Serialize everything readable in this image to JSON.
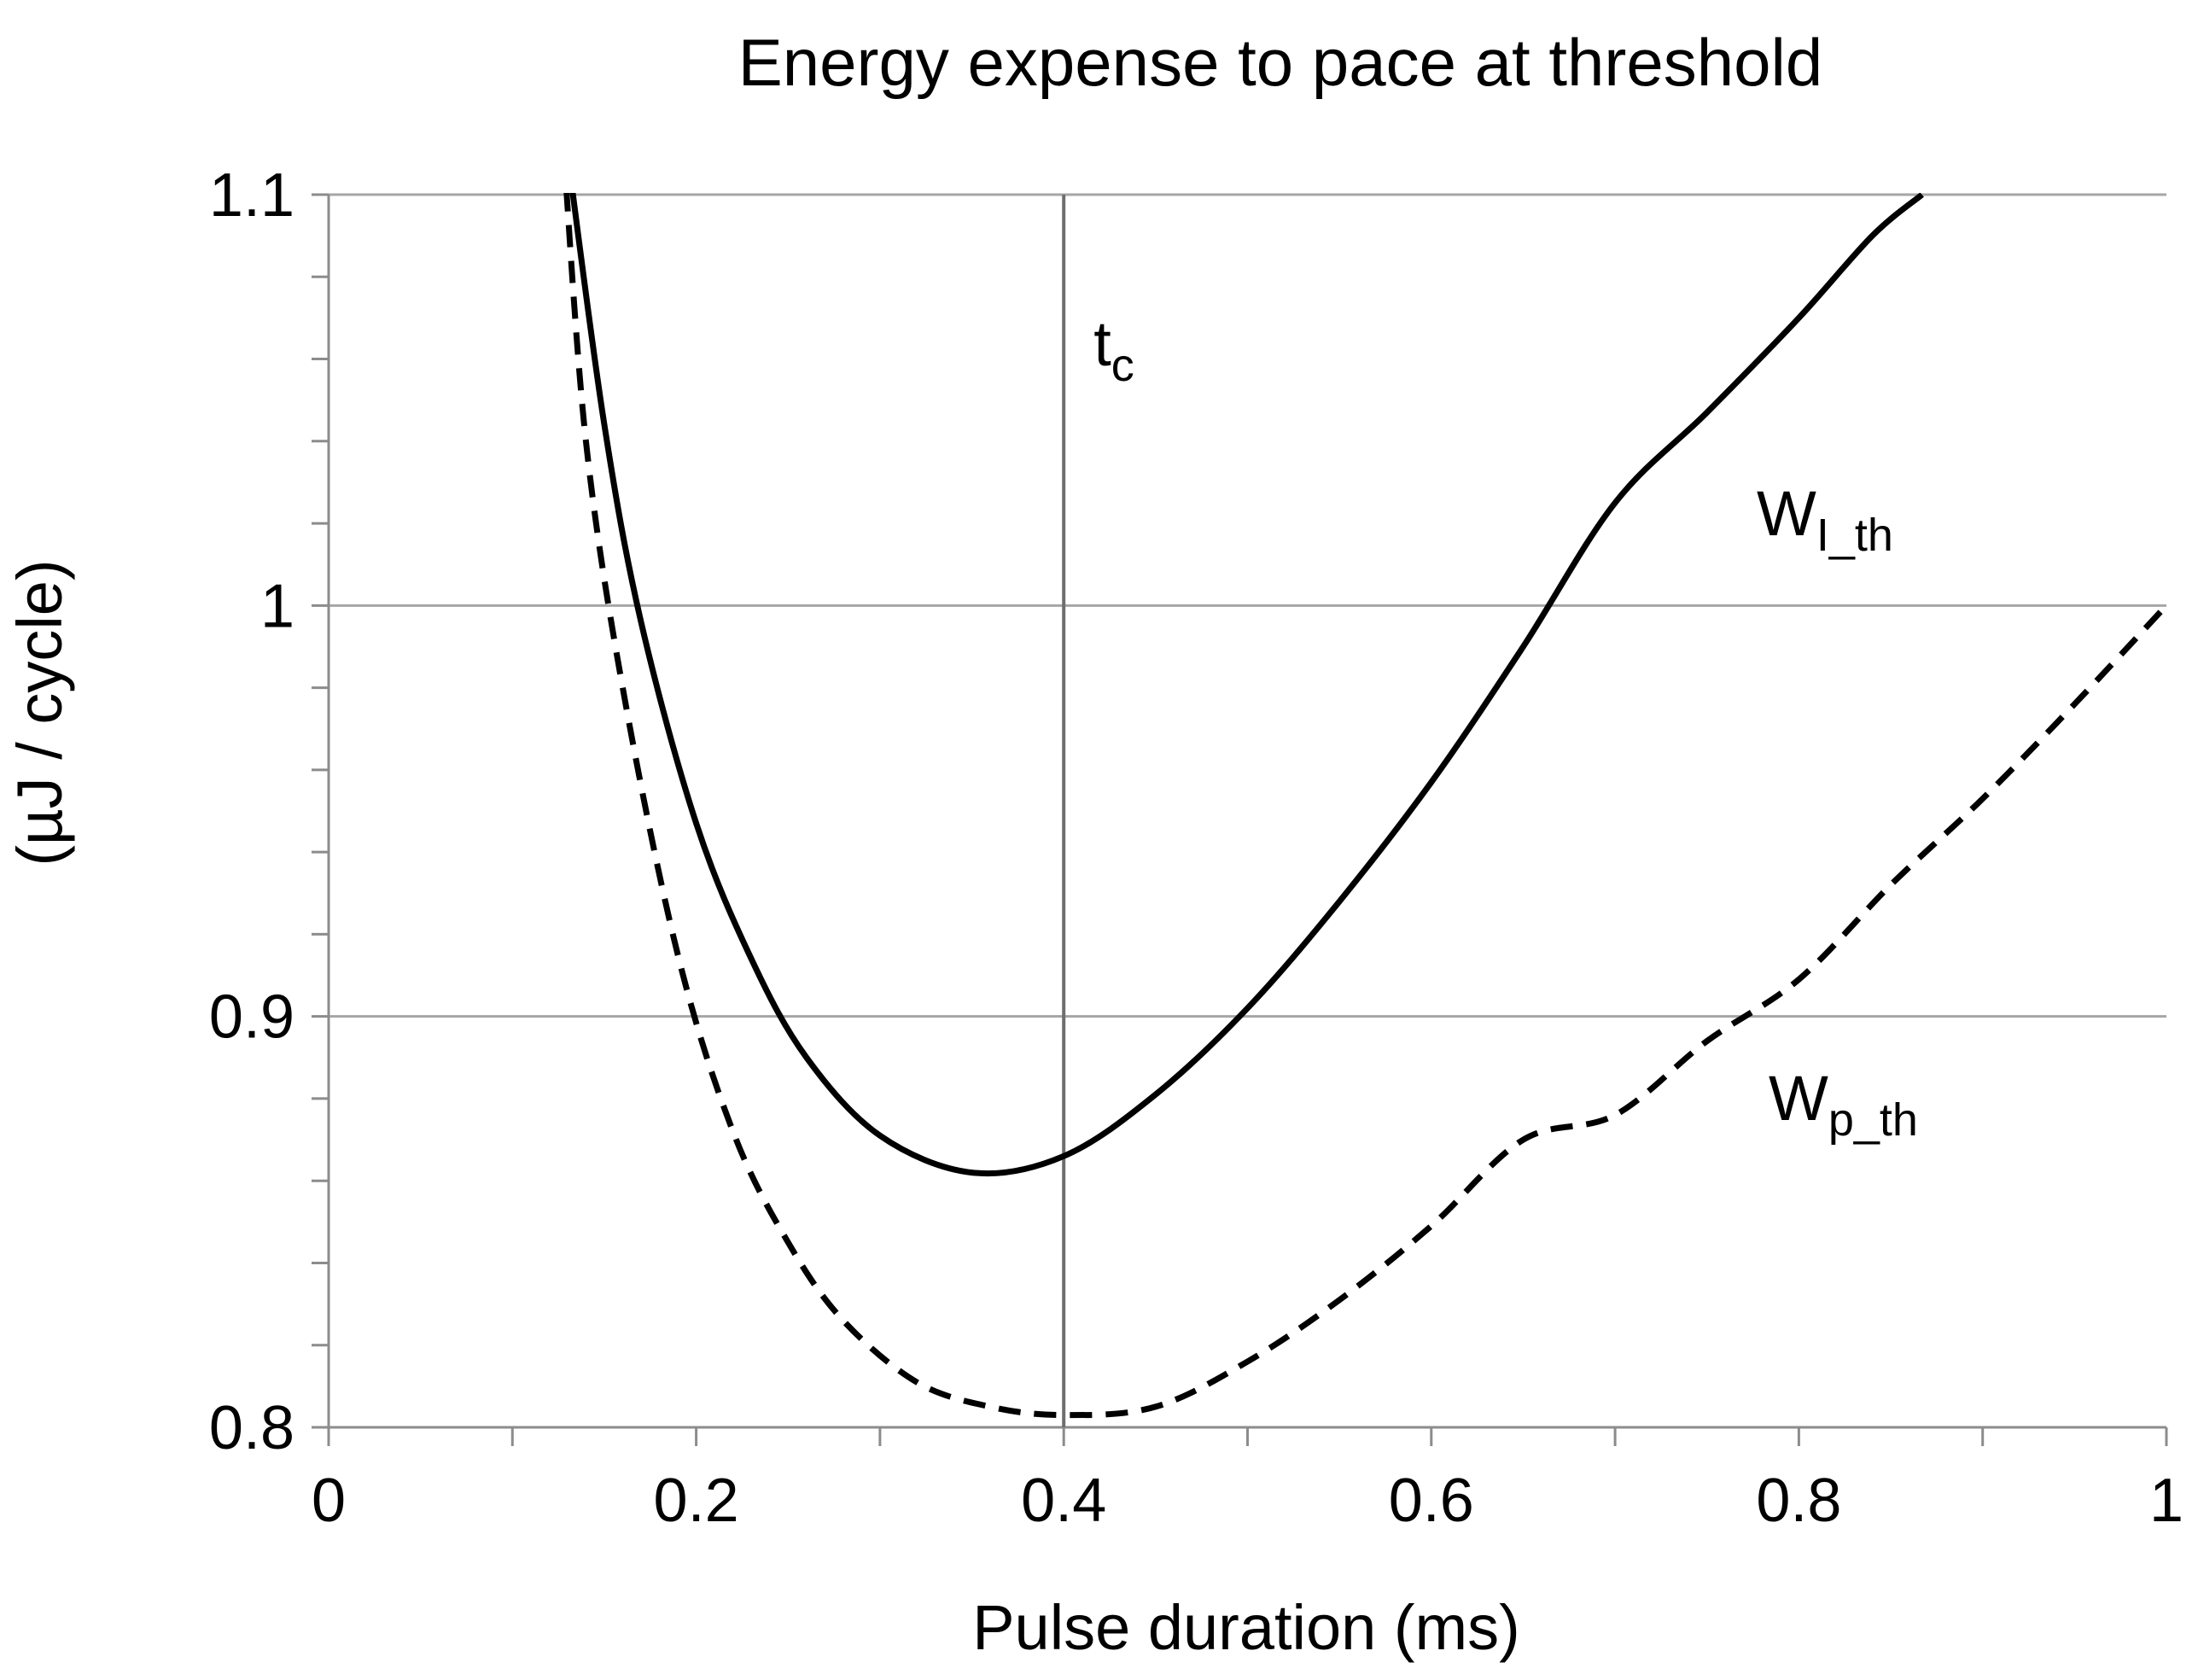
{
  "chart_data": {
    "type": "line",
    "title": "Energy expense to pace at threshold",
    "xlabel": "Pulse duration (ms)",
    "ylabel": "(µJ / cycle)",
    "xlim": [
      0,
      1
    ],
    "ylim": [
      0.8,
      1.1
    ],
    "x_ticks": [
      "0",
      "0.2",
      "0.4",
      "0.6",
      "0.8",
      "1"
    ],
    "y_ticks": [
      "0.8",
      "0.9",
      "1",
      "1.1"
    ],
    "grid": "horizontal",
    "vline": {
      "x": 0.4,
      "label_main": "t",
      "label_sub": "c"
    },
    "series": [
      {
        "name": "W_I_th",
        "label_main": "W",
        "label_sub": "I_th",
        "style": "solid",
        "x": [
          0.13,
          0.15,
          0.17,
          0.2,
          0.23,
          0.26,
          0.3,
          0.35,
          0.4,
          0.45,
          0.5,
          0.55,
          0.6,
          0.65,
          0.7,
          0.75,
          0.8,
          0.84,
          0.867
        ],
        "y": [
          1.11,
          1.044,
          0.996,
          0.947,
          0.914,
          0.89,
          0.871,
          0.862,
          0.866,
          0.881,
          0.902,
          0.928,
          0.957,
          0.99,
          1.025,
          1.047,
          1.07,
          1.09,
          1.1
        ]
      },
      {
        "name": "W_p_th",
        "label_main": "W",
        "label_sub": "p_th",
        "style": "dashed",
        "x": [
          0.128,
          0.14,
          0.16,
          0.19,
          0.22,
          0.25,
          0.28,
          0.32,
          0.36,
          0.4,
          0.45,
          0.5,
          0.55,
          0.6,
          0.65,
          0.7,
          0.75,
          0.8,
          0.85,
          0.9,
          0.95,
          1.0
        ],
        "y": [
          1.11,
          1.04,
          0.98,
          0.915,
          0.872,
          0.845,
          0.826,
          0.811,
          0.805,
          0.803,
          0.805,
          0.816,
          0.831,
          0.849,
          0.87,
          0.876,
          0.894,
          0.909,
          0.932,
          0.953,
          0.976,
          1.0
        ]
      }
    ]
  }
}
